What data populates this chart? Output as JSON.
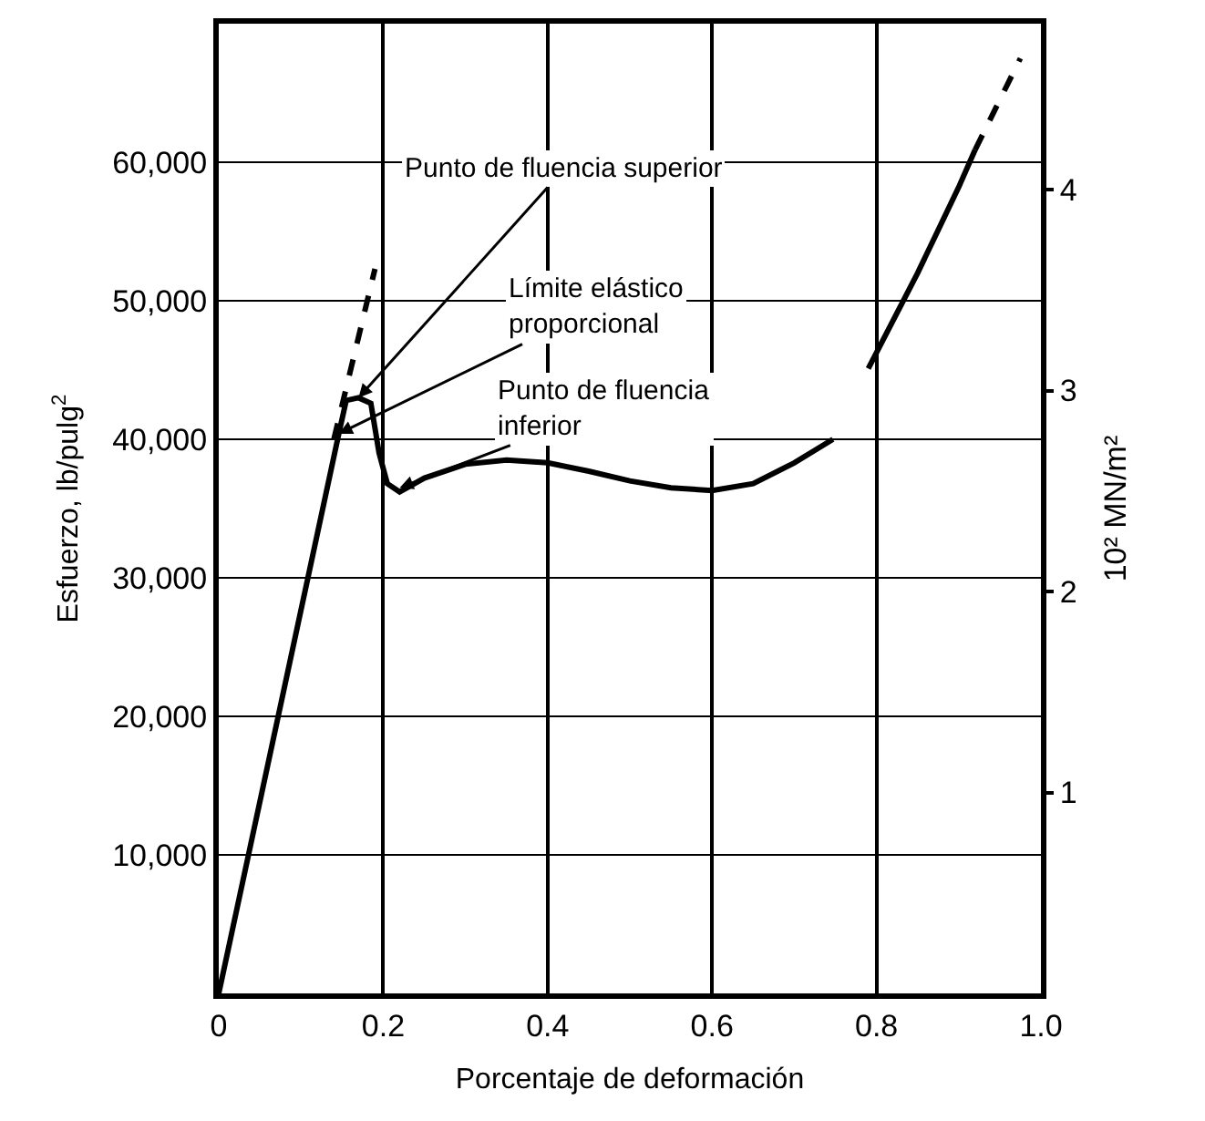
{
  "chart_data": {
    "type": "line",
    "xlabel": "Porcentaje de deformación",
    "ylabel": "Esfuerzo, lb/pulg$^{2}$",
    "y2label": "10² MN/m²",
    "xlim": [
      0,
      1
    ],
    "xticks": [
      0,
      0.2,
      0.4,
      0.6,
      0.8,
      {
        "value": 1,
        "label": "1.0"
      }
    ],
    "ylim": [
      0,
      70000
    ],
    "yticks": [
      {
        "value": 10000,
        "label": "10,000"
      },
      {
        "value": 20000,
        "label": "20,000"
      },
      {
        "value": 30000,
        "label": "30,000"
      },
      {
        "value": 40000,
        "label": "40,000"
      },
      {
        "value": 50000,
        "label": "50,000"
      },
      {
        "value": 60000,
        "label": "60,000"
      }
    ],
    "y2lim": [
      0,
      4.826
    ],
    "y2ticks": [
      1,
      2,
      3,
      4
    ],
    "grid": true,
    "marker": "none",
    "series": [
      {
        "color": "#000000",
        "line_style": "solid",
        "x": [
          0,
          0.146,
          0.155,
          0.17,
          0.185,
          0.195,
          0.205,
          0.22,
          0.25,
          0.3,
          0.35,
          0.4,
          0.45,
          0.5,
          0.55,
          0.6,
          0.65,
          0.7,
          0.747,
          0.77,
          0.79,
          0.85,
          0.9,
          0.92
        ],
        "values": [
          0,
          40400,
          42800,
          43000,
          42600,
          39000,
          36800,
          36200,
          37200,
          38200,
          38500,
          38300,
          37700,
          37000,
          36500,
          36300,
          36800,
          38300,
          40000,
          null,
          45100,
          52000,
          58200,
          60900
        ]
      },
      {
        "color": "#000000",
        "line_style": "dashed",
        "x": [
          0.92,
          0.975
        ],
        "values": [
          60900,
          67500
        ]
      },
      {
        "color": "#000000",
        "line_style": "dashed",
        "x": [
          0.14,
          0.19
        ],
        "values": [
          40000,
          52300
        ]
      }
    ],
    "annotations": [
      {
        "text": "Punto de fluencia superior",
        "x": 0.17,
        "y": 43000
      },
      {
        "text": "Límite elástico\nproporcional",
        "x": 0.146,
        "y": 40400
      },
      {
        "text": "Punto de fluencia\ninferior",
        "x": 0.22,
        "y": 36500
      }
    ]
  }
}
